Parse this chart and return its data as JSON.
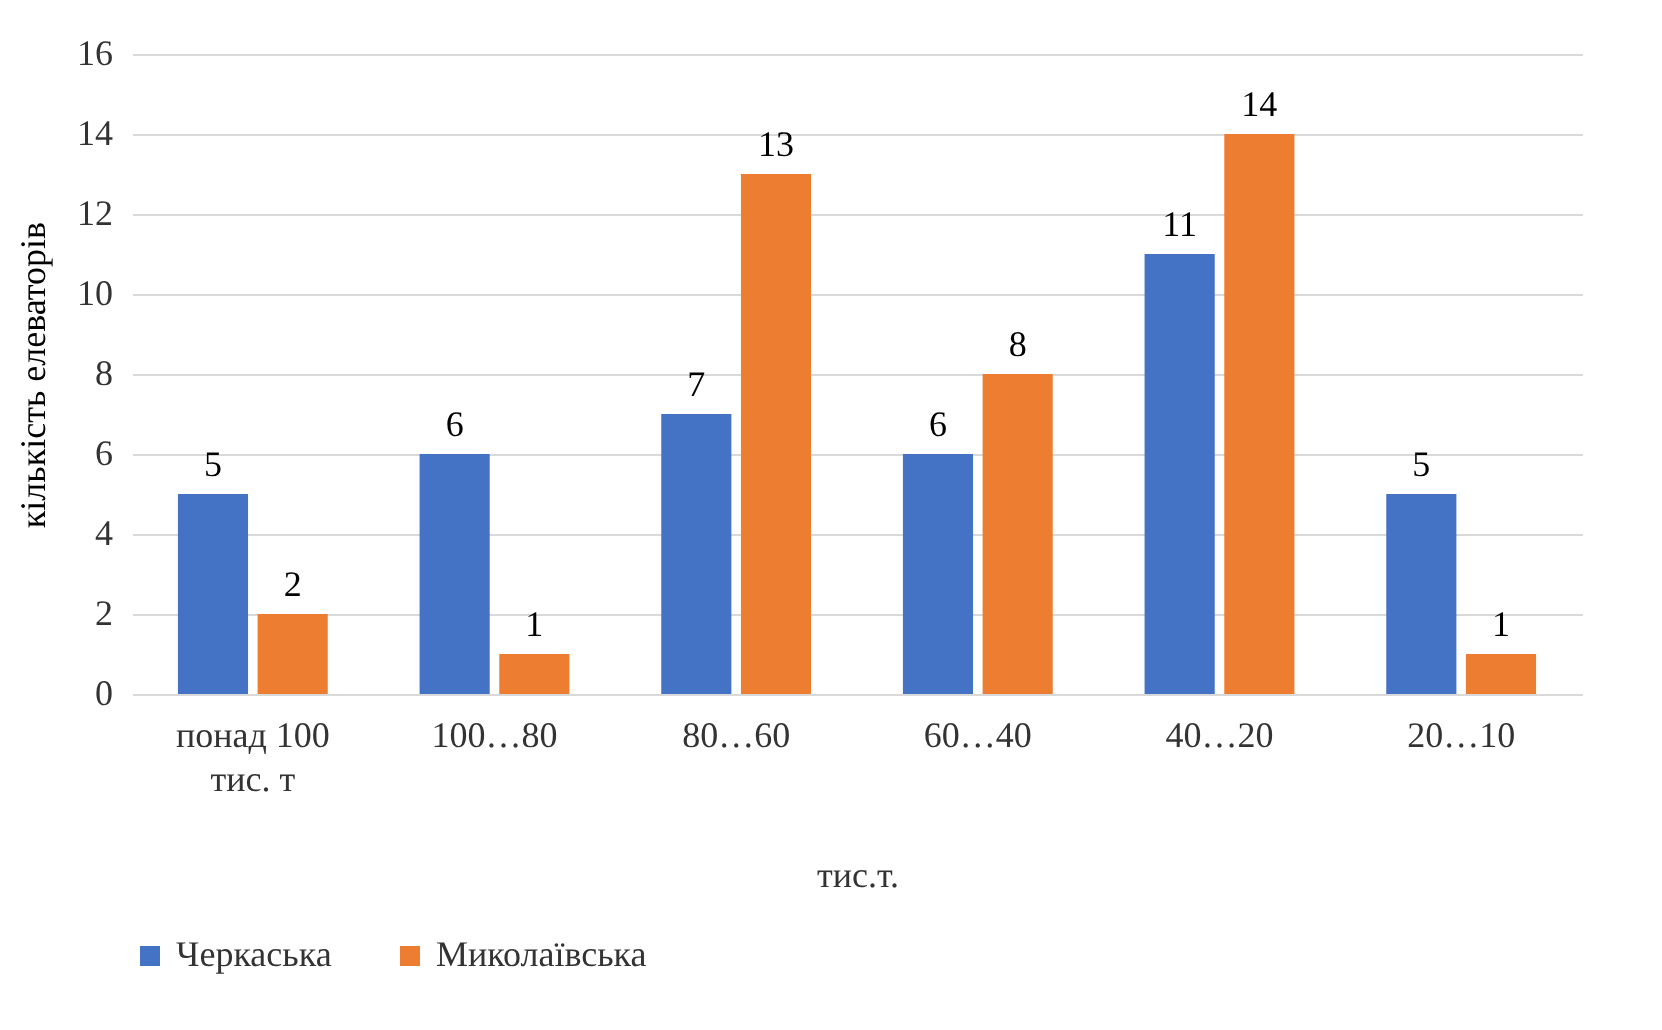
{
  "chart_data": {
    "type": "bar",
    "xlabel": "тис.т.",
    "ylabel": "кількість елеваторів",
    "categories": [
      "понад 100 тис. т",
      "100…80",
      "80…60",
      "60…40",
      "40…20",
      "20…10"
    ],
    "series": [
      {
        "name": "Черкаська",
        "color": "#4472c4",
        "values": [
          5,
          6,
          7,
          6,
          11,
          5
        ]
      },
      {
        "name": "Миколаївська",
        "color": "#ed7d31",
        "values": [
          2,
          1,
          13,
          8,
          14,
          1
        ]
      }
    ],
    "ylim": [
      0,
      16
    ],
    "yticks": [
      0,
      2,
      4,
      6,
      8,
      10,
      12,
      14,
      16
    ],
    "grid": "y",
    "legend": "bottom",
    "data_labels": true
  }
}
